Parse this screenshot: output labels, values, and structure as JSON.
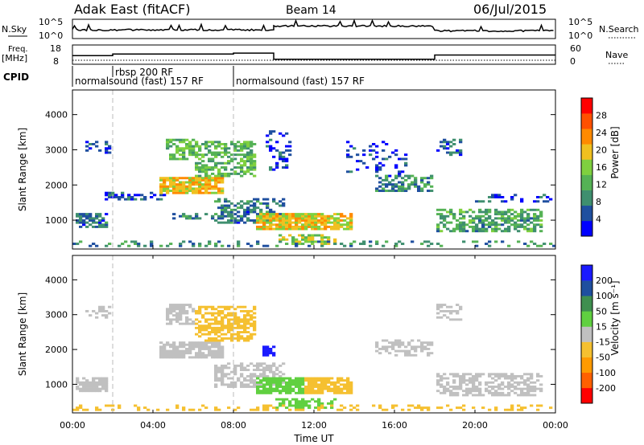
{
  "header": {
    "title": "Adak East (fitACF)",
    "beam": "Beam 14",
    "date": "06/Jul/2015"
  },
  "labels": {
    "nsky": "N.Sky",
    "nsearch": "N.Search",
    "freq_top": "Freq.",
    "freq_unit": "[MHz]",
    "nave": "Nave",
    "cpid": "CPID",
    "xlabel": "Time UT"
  },
  "ticks": {
    "nsky_left": [
      "10^5",
      "10^0"
    ],
    "nsky_right": [
      "10^5",
      "10^0"
    ],
    "freq_left": [
      "18",
      "8"
    ],
    "freq_right": [
      "60",
      "0"
    ],
    "x": [
      "00:00",
      "04:00",
      "08:00",
      "12:00",
      "16:00",
      "20:00",
      "00:00"
    ],
    "range": [
      "1000",
      "2000",
      "3000",
      "4000"
    ]
  },
  "cpid": [
    {
      "text": "normalsound (fast) 157 RF",
      "start_hour": 0.0
    },
    {
      "text": "rbsp 200 RF",
      "start_hour": 2.0
    },
    {
      "text": "normalsound (fast) 157 RF",
      "start_hour": 8.0
    }
  ],
  "colors": {
    "power": [
      "#0000ff",
      "#1f4f9f",
      "#3f8f6f",
      "#55b255",
      "#7fd03f",
      "#f0c020",
      "#ff8a00",
      "#ff5000",
      "#ff0000"
    ],
    "velocity": [
      "#ff0000",
      "#ff6000",
      "#ff9a00",
      "#f5c030",
      "#c0c0c0",
      "#60d040",
      "#3f8f4f",
      "#1f4f9f",
      "#1a1aff"
    ]
  },
  "colorbars": {
    "power": {
      "label": "Power [dB]",
      "ticks": [
        "28",
        "24",
        "20",
        "16",
        "12",
        "8",
        "4"
      ]
    },
    "velocity": {
      "label": "Velocity [m s⁻¹]",
      "ticks": [
        "200",
        "100",
        "50",
        "15",
        "-15",
        "-50",
        "-100",
        "-200"
      ]
    }
  },
  "chart_data": [
    {
      "type": "line",
      "name_label": "N.Sky / N.Search",
      "x_range_hours": [
        0,
        24
      ],
      "segments": [
        {
          "start": 0,
          "end": 10,
          "level": 0.45
        },
        {
          "start": 10,
          "end": 18,
          "level": 0.65
        },
        {
          "start": 18,
          "end": 24,
          "level": 0.4
        }
      ]
    },
    {
      "type": "line",
      "name_label": "Freq. / Nave",
      "x_range_hours": [
        0,
        24
      ],
      "ylim": [
        8,
        18
      ],
      "freq_steps": [
        {
          "start": 0,
          "end": 2,
          "value": 12.5
        },
        {
          "start": 2,
          "end": 8,
          "value": 13.3
        },
        {
          "start": 8,
          "end": 10,
          "value": 13.8
        },
        {
          "start": 10,
          "end": 18,
          "value": 10.6
        },
        {
          "start": 18,
          "end": 24,
          "value": 12.8
        }
      ]
    },
    {
      "type": "heatmap",
      "quantity": "power",
      "xlabel": "Time UT",
      "ylabel": "Slant Range [km]",
      "xlim": [
        0,
        24
      ],
      "ylim": [
        180,
        4700
      ],
      "regions": [
        {
          "x0": 0.1,
          "x1": 1.6,
          "y0": 750,
          "y1": 1200,
          "value": 8,
          "density": 0.8
        },
        {
          "x0": 0.5,
          "x1": 1.8,
          "y0": 2850,
          "y1": 3250,
          "value": 6,
          "density": 0.35
        },
        {
          "x0": 1.5,
          "x1": 4.5,
          "y0": 1550,
          "y1": 1800,
          "value": 6,
          "density": 0.4
        },
        {
          "x0": 4.2,
          "x1": 7.5,
          "y0": 1700,
          "y1": 2200,
          "value": 20,
          "density": 0.85
        },
        {
          "x0": 4.5,
          "x1": 6.0,
          "y0": 2700,
          "y1": 3300,
          "value": 14,
          "density": 0.7
        },
        {
          "x0": 6.0,
          "x1": 9.0,
          "y0": 2200,
          "y1": 3200,
          "value": 14,
          "density": 0.6
        },
        {
          "x0": 4.5,
          "x1": 7.5,
          "y0": 1000,
          "y1": 1200,
          "value": 10,
          "density": 0.4
        },
        {
          "x0": 7.0,
          "x1": 10.5,
          "y0": 900,
          "y1": 1600,
          "value": 9,
          "density": 0.55
        },
        {
          "x0": 9.5,
          "x1": 10.8,
          "y0": 2400,
          "y1": 3600,
          "value": 6,
          "density": 0.3
        },
        {
          "x0": 9.0,
          "x1": 13.8,
          "y0": 700,
          "y1": 1150,
          "value": 19,
          "density": 0.85
        },
        {
          "x0": 10.0,
          "x1": 13.0,
          "y0": 250,
          "y1": 550,
          "value": 16,
          "density": 0.45
        },
        {
          "x0": 13.5,
          "x1": 16.5,
          "y0": 2200,
          "y1": 3200,
          "value": 5,
          "density": 0.2
        },
        {
          "x0": 15.0,
          "x1": 17.8,
          "y0": 1800,
          "y1": 2250,
          "value": 10,
          "density": 0.55
        },
        {
          "x0": 18.0,
          "x1": 23.2,
          "y0": 650,
          "y1": 1300,
          "value": 12,
          "density": 0.6
        },
        {
          "x0": 18.0,
          "x1": 19.3,
          "y0": 2800,
          "y1": 3300,
          "value": 8,
          "density": 0.4
        },
        {
          "x0": 20.0,
          "x1": 24.0,
          "y0": 1450,
          "y1": 1700,
          "value": 6,
          "density": 0.3
        },
        {
          "x0": 0.0,
          "x1": 24.0,
          "y0": 200,
          "y1": 400,
          "value": 10,
          "density": 0.25
        }
      ]
    },
    {
      "type": "heatmap",
      "quantity": "velocity",
      "xlabel": "Time UT",
      "ylabel": "Slant Range [km]",
      "xlim": [
        0,
        24
      ],
      "ylim": [
        180,
        4700
      ],
      "regions": [
        {
          "x0": 0.1,
          "x1": 1.6,
          "y0": 750,
          "y1": 1200,
          "value": 0,
          "density": 0.8
        },
        {
          "x0": 0.5,
          "x1": 1.8,
          "y0": 2850,
          "y1": 3250,
          "value": 0,
          "density": 0.35
        },
        {
          "x0": 4.2,
          "x1": 7.5,
          "y0": 1700,
          "y1": 2200,
          "value": 0,
          "density": 0.85
        },
        {
          "x0": 4.5,
          "x1": 6.0,
          "y0": 2700,
          "y1": 3300,
          "value": 0,
          "density": 0.7
        },
        {
          "x0": 6.0,
          "x1": 9.0,
          "y0": 2200,
          "y1": 3200,
          "value": -30,
          "density": 0.6
        },
        {
          "x0": 9.4,
          "x1": 10.0,
          "y0": 1750,
          "y1": 2100,
          "value": 220,
          "density": 0.8
        },
        {
          "x0": 7.0,
          "x1": 10.5,
          "y0": 900,
          "y1": 1600,
          "value": 0,
          "density": 0.55
        },
        {
          "x0": 9.0,
          "x1": 11.5,
          "y0": 700,
          "y1": 1150,
          "value": 30,
          "density": 0.8
        },
        {
          "x0": 11.5,
          "x1": 13.8,
          "y0": 700,
          "y1": 1150,
          "value": -30,
          "density": 0.85
        },
        {
          "x0": 10.0,
          "x1": 13.0,
          "y0": 250,
          "y1": 550,
          "value": 40,
          "density": 0.45
        },
        {
          "x0": 15.0,
          "x1": 17.8,
          "y0": 1800,
          "y1": 2250,
          "value": 0,
          "density": 0.55
        },
        {
          "x0": 18.0,
          "x1": 23.2,
          "y0": 650,
          "y1": 1300,
          "value": 0,
          "density": 0.6
        },
        {
          "x0": 18.0,
          "x1": 19.3,
          "y0": 2800,
          "y1": 3300,
          "value": 0,
          "density": 0.4
        },
        {
          "x0": 0.0,
          "x1": 24.0,
          "y0": 200,
          "y1": 400,
          "value": -30,
          "density": 0.25
        }
      ]
    }
  ]
}
